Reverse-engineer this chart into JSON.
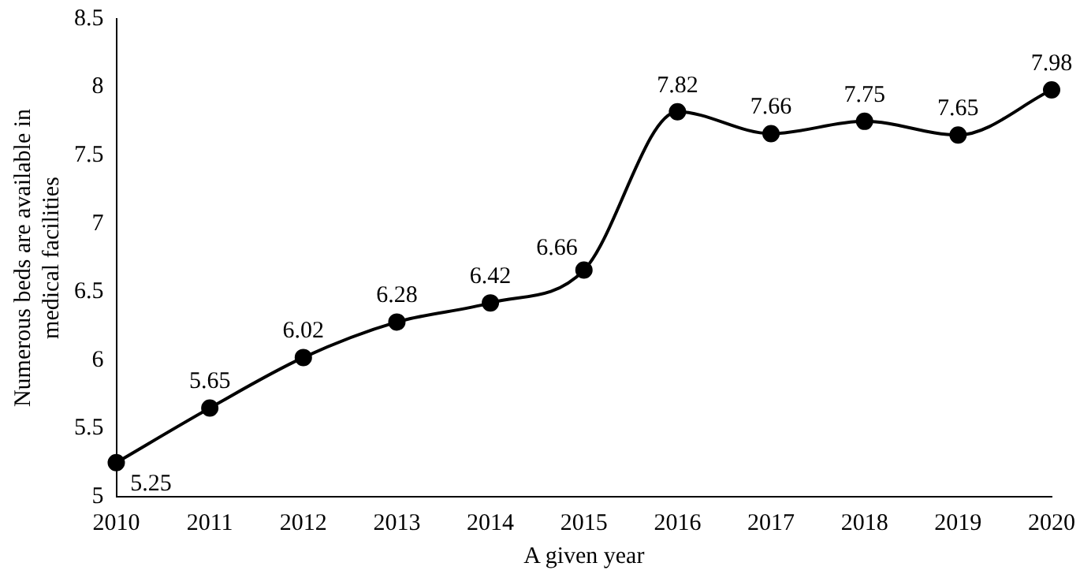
{
  "chart_data": {
    "type": "line",
    "xlabel": "A given year",
    "ylabel": "Numerous beds are available in medical facilities",
    "categories": [
      "2010",
      "2011",
      "2012",
      "2013",
      "2014",
      "2015",
      "2016",
      "2017",
      "2018",
      "2019",
      "2020"
    ],
    "series": [
      {
        "color": "#000000",
        "values": [
          5.25,
          5.65,
          6.02,
          6.28,
          6.42,
          6.66,
          7.82,
          7.66,
          7.75,
          7.65,
          7.98
        ]
      }
    ],
    "ylim": [
      5,
      8.5
    ],
    "yticks": [
      5,
      5.5,
      6,
      6.5,
      7,
      7.5,
      8,
      8.5
    ],
    "grid": false,
    "legend": false,
    "marker": "circle",
    "line_style": "solid",
    "data_labels": true
  }
}
